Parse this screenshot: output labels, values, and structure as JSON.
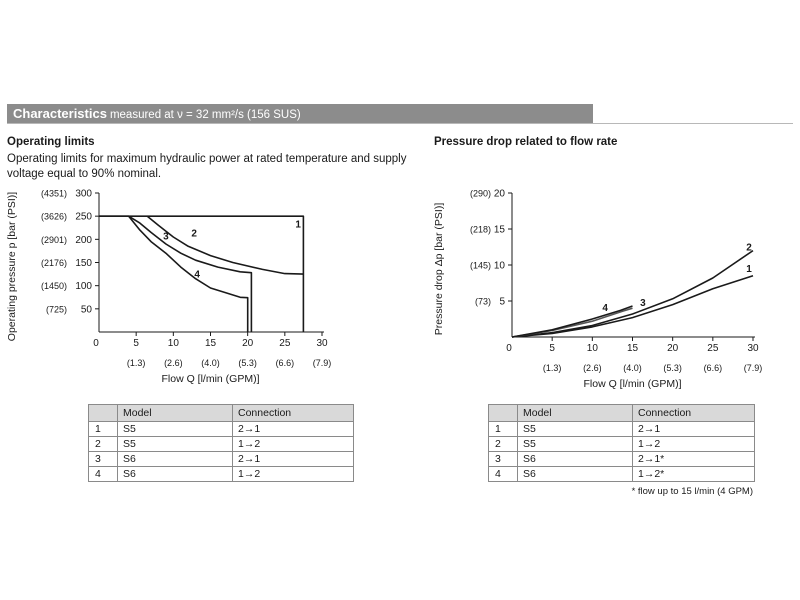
{
  "header": {
    "title": "Characteristics",
    "subtitle": "measured at ν = 32 mm²/s (156 SUS)"
  },
  "left": {
    "section_title": "Operating limits",
    "description": "Operating limits for maximum hydraulic power at rated temperature and supply voltage equal to 90% nominal.",
    "table": {
      "headers": [
        "",
        "Model",
        "Connection"
      ],
      "rows": [
        [
          "1",
          "S5",
          "2→1"
        ],
        [
          "2",
          "S5",
          "1→2"
        ],
        [
          "3",
          "S6",
          "2→1"
        ],
        [
          "4",
          "S6",
          "1→2"
        ]
      ]
    }
  },
  "right": {
    "section_title": "Pressure drop related to flow rate",
    "table": {
      "headers": [
        "",
        "Model",
        "Connection"
      ],
      "rows": [
        [
          "1",
          "S5",
          "2→1"
        ],
        [
          "2",
          "S5",
          "1→2"
        ],
        [
          "3",
          "S6",
          "2→1*"
        ],
        [
          "4",
          "S6",
          "1→2*"
        ]
      ],
      "footnote": "* flow up to 15 l/min (4 GPM)"
    }
  },
  "chart_data": [
    {
      "type": "line",
      "xlabel": "Flow Q [l/min (GPM)]",
      "ylabel": "Operating pressure p [bar (PSI)]",
      "xlim": [
        0,
        30
      ],
      "ylim": [
        0,
        300
      ],
      "x_ticks": [
        "5",
        "10",
        "15",
        "20",
        "25",
        "30"
      ],
      "x_ticks_secondary": [
        "(1.3)",
        "(2.6)",
        "(4.0)",
        "(5.3)",
        "(6.6)",
        "(7.9)"
      ],
      "y_ticks": [
        "50",
        "100",
        "150",
        "200",
        "250",
        "300"
      ],
      "y_ticks_secondary": [
        "(725)",
        "(1450)",
        "(2176)",
        "(2901)",
        "(3626)",
        "(4351)"
      ],
      "origin_label": "0",
      "grid": false,
      "series": [
        {
          "name": "1",
          "points": [
            [
              0,
              250
            ],
            [
              27.5,
              250
            ],
            [
              27.5,
              0
            ]
          ]
        },
        {
          "name": "2",
          "points": [
            [
              6.5,
              250
            ],
            [
              8,
              230
            ],
            [
              10,
              205
            ],
            [
              12,
              185
            ],
            [
              15,
              165
            ],
            [
              18,
              150
            ],
            [
              22,
              135
            ],
            [
              25,
              126
            ],
            [
              27.5,
              125
            ]
          ]
        },
        {
          "name": "3",
          "points": [
            [
              0,
              250
            ],
            [
              4,
              250
            ],
            [
              5.5,
              235
            ],
            [
              7,
              215
            ],
            [
              9,
              190
            ],
            [
              11,
              170
            ],
            [
              13,
              155
            ],
            [
              16,
              140
            ],
            [
              19,
              130
            ],
            [
              20.5,
              128
            ],
            [
              20.5,
              0
            ]
          ]
        },
        {
          "name": "4",
          "points": [
            [
              4,
              250
            ],
            [
              5.5,
              220
            ],
            [
              7,
              195
            ],
            [
              9,
              170
            ],
            [
              11,
              140
            ],
            [
              13,
              115
            ],
            [
              15,
              95
            ],
            [
              17,
              85
            ],
            [
              19,
              75
            ],
            [
              20,
              74
            ],
            [
              20,
              0
            ]
          ]
        }
      ]
    },
    {
      "type": "line",
      "xlabel": "Flow Q [l/min (GPM)]",
      "ylabel": "Pressure drop Δp [bar (PSI)]",
      "xlim": [
        0,
        30
      ],
      "ylim": [
        0,
        20
      ],
      "x_ticks": [
        "5",
        "10",
        "15",
        "20",
        "25",
        "30"
      ],
      "x_ticks_secondary": [
        "(1.3)",
        "(2.6)",
        "(4.0)",
        "(5.3)",
        "(6.6)",
        "(7.9)"
      ],
      "y_ticks": [
        "5",
        "10",
        "15",
        "20"
      ],
      "y_ticks_secondary": [
        "(73)",
        "(145)",
        "(218)",
        "(290)"
      ],
      "origin_label": "0",
      "grid": false,
      "series": [
        {
          "name": "1",
          "points": [
            [
              0,
              0
            ],
            [
              5,
              0.5
            ],
            [
              10,
              1.4
            ],
            [
              15,
              2.7
            ],
            [
              20,
              4.5
            ],
            [
              25,
              6.7
            ],
            [
              30,
              8.5
            ]
          ]
        },
        {
          "name": "2",
          "points": [
            [
              0,
              0
            ],
            [
              5,
              0.6
            ],
            [
              10,
              1.6
            ],
            [
              15,
              3.2
            ],
            [
              20,
              5.3
            ],
            [
              25,
              8.2
            ],
            [
              30,
              12
            ]
          ]
        },
        {
          "name": "3",
          "points": [
            [
              0,
              0
            ],
            [
              5,
              0.9
            ],
            [
              10,
              2.2
            ],
            [
              13.8,
              3.6
            ],
            [
              15,
              4.0
            ]
          ]
        },
        {
          "name": "4",
          "points": [
            [
              0,
              0
            ],
            [
              5,
              1.0
            ],
            [
              10,
              2.5
            ],
            [
              13.5,
              3.7
            ],
            [
              15,
              4.3
            ]
          ]
        }
      ]
    }
  ]
}
